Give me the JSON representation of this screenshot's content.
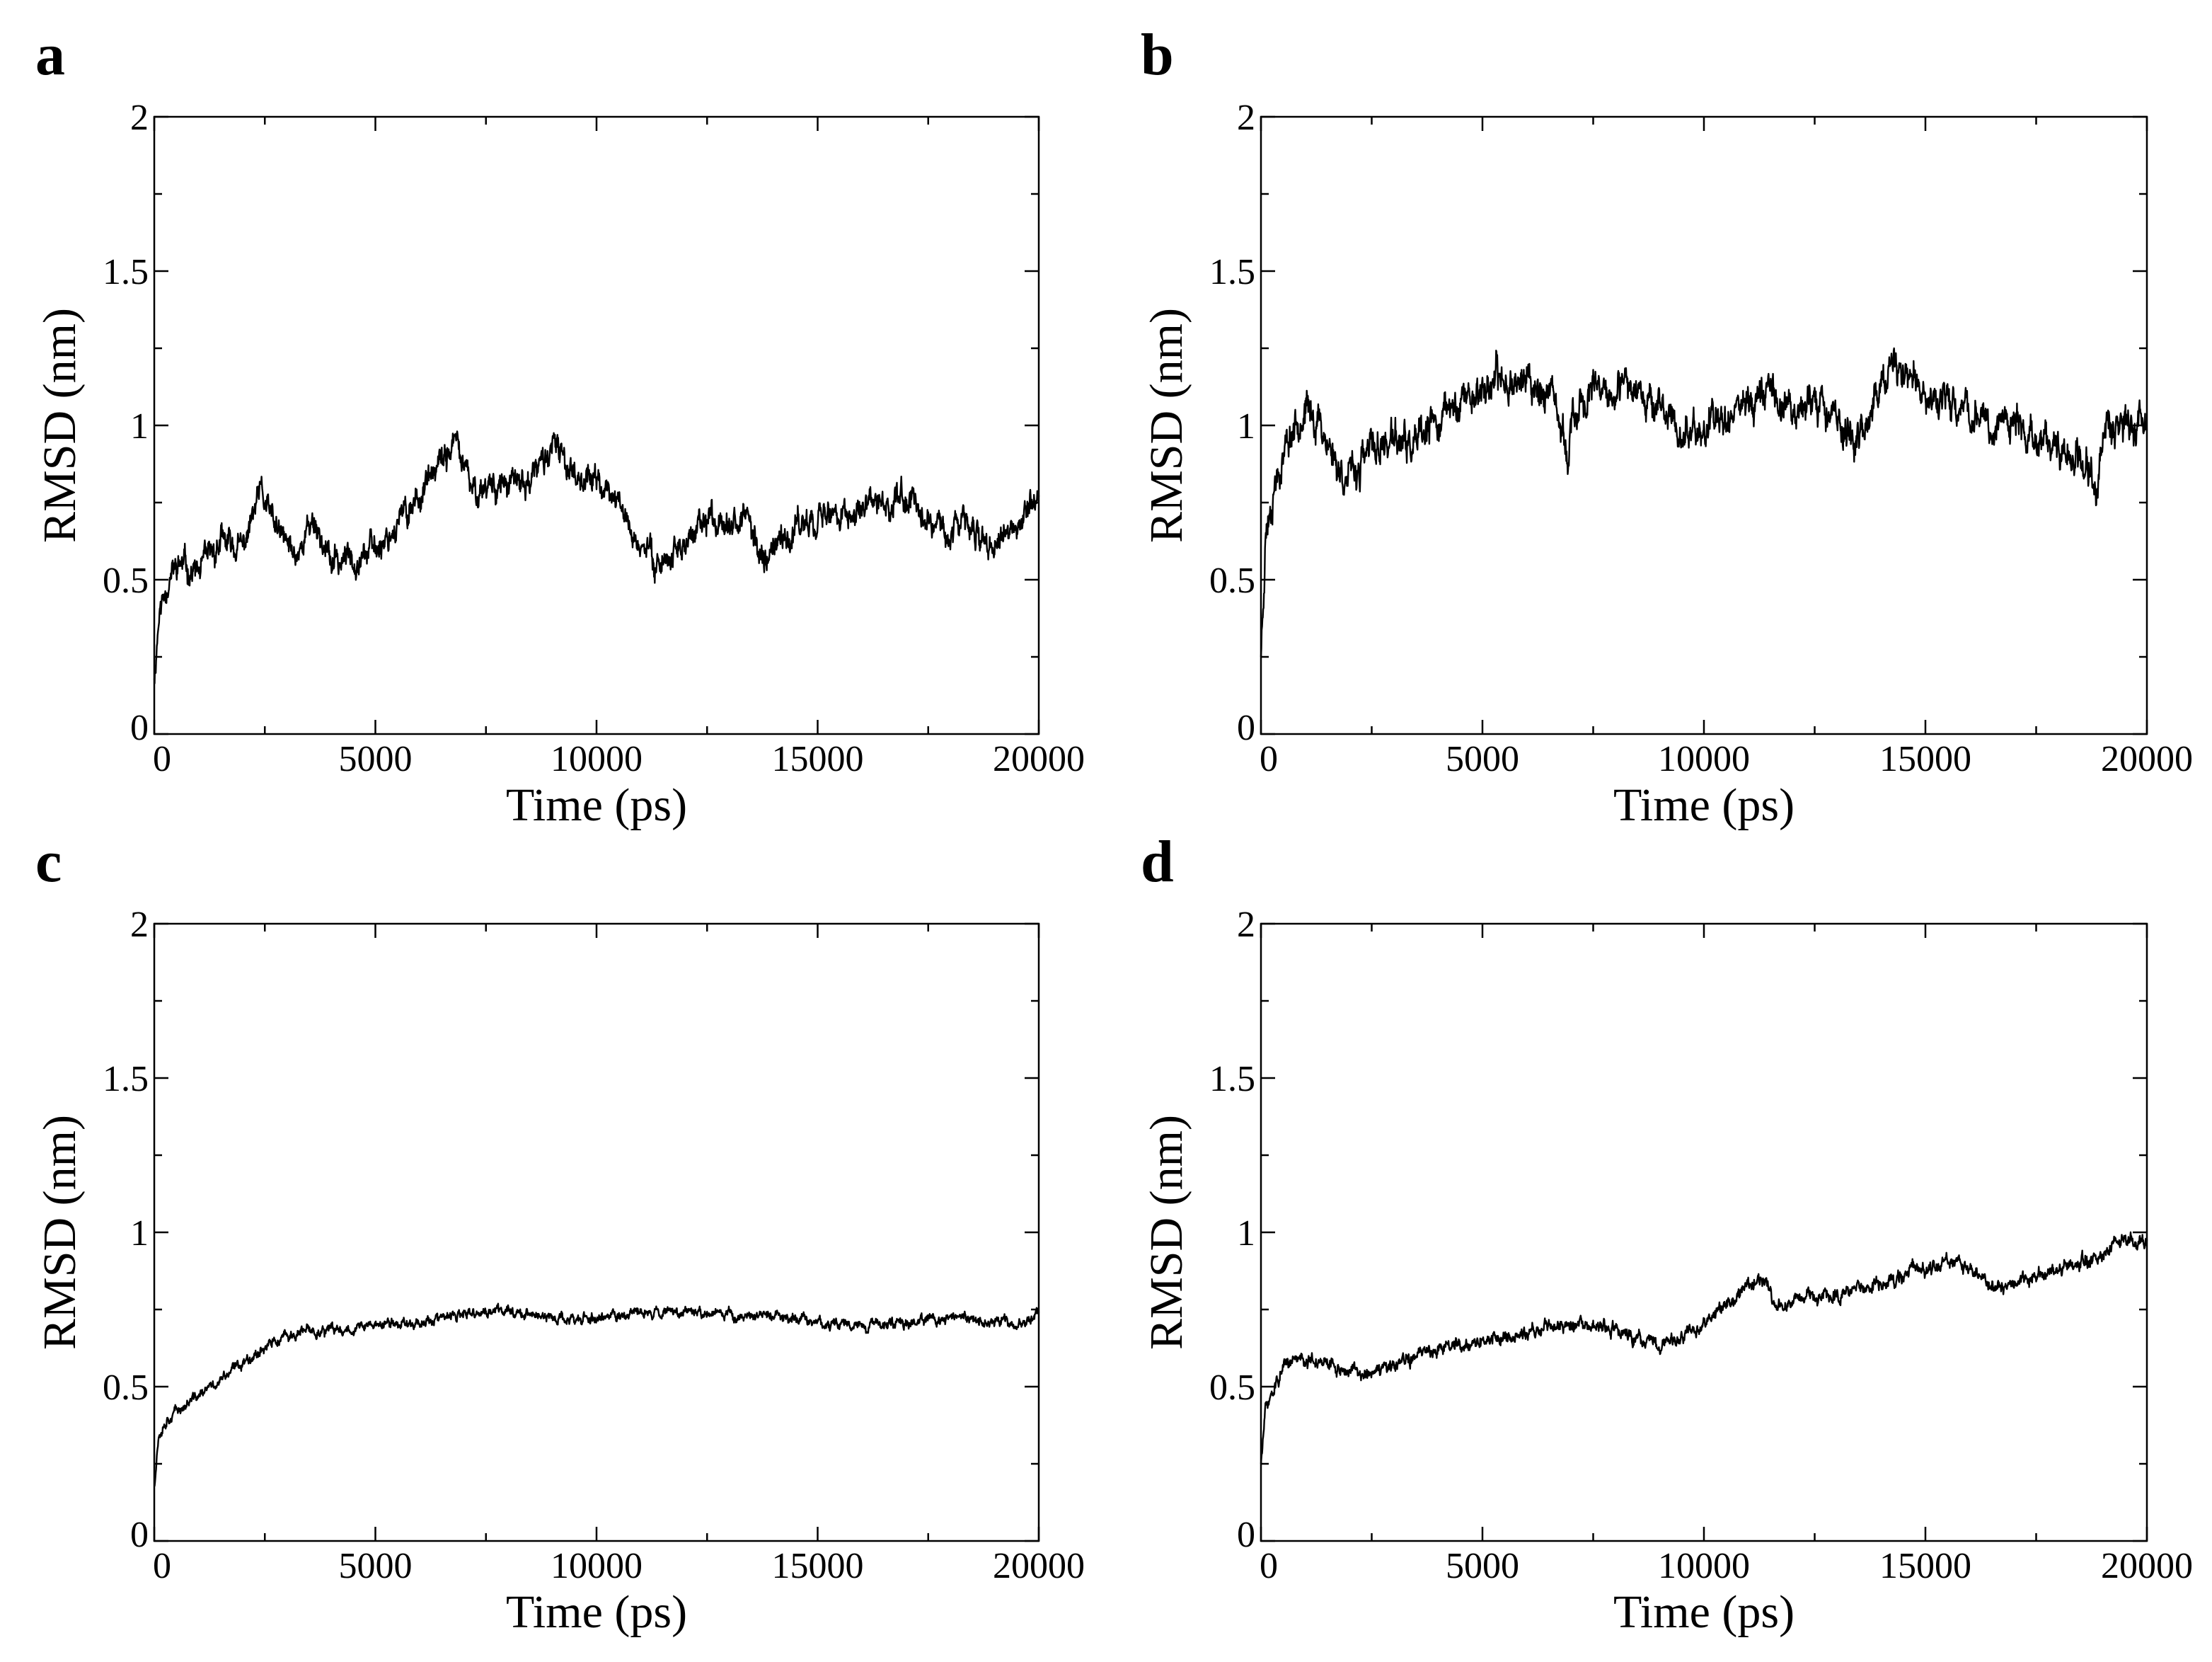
{
  "chart_data": [
    {
      "panel": "a",
      "type": "line",
      "xlabel": "Time (ps)",
      "ylabel": "RMSD (nm)",
      "xlim": [
        0,
        20000
      ],
      "ylim": [
        0,
        2
      ],
      "xticks": [
        0,
        5000,
        10000,
        15000,
        20000
      ],
      "xtick_labels": [
        "0",
        "5000",
        "10000",
        "15000",
        "20000"
      ],
      "yticks": [
        0,
        0.5,
        1,
        1.5,
        2
      ],
      "ytick_labels": [
        "0",
        "0.5",
        "1",
        "1.5",
        "2"
      ],
      "noise": 0.035,
      "seed": 11,
      "series": [
        {
          "name": "RMSD",
          "x": [
            0,
            100,
            300,
            600,
            1000,
            1500,
            2000,
            2400,
            2800,
            3200,
            3600,
            4000,
            4500,
            5000,
            5500,
            6000,
            6400,
            6800,
            7200,
            7600,
            8000,
            8500,
            9000,
            9500,
            10000,
            10500,
            11000,
            11500,
            12000,
            12500,
            13000,
            13400,
            13800,
            14200,
            14600,
            15000,
            15500,
            16000,
            16500,
            17000,
            17500,
            18000,
            18500,
            19000,
            19500,
            20000
          ],
          "y": [
            0.18,
            0.38,
            0.5,
            0.55,
            0.52,
            0.62,
            0.6,
            0.78,
            0.65,
            0.58,
            0.7,
            0.55,
            0.58,
            0.6,
            0.68,
            0.78,
            0.85,
            0.95,
            0.78,
            0.82,
            0.8,
            0.82,
            0.93,
            0.85,
            0.82,
            0.75,
            0.6,
            0.56,
            0.62,
            0.68,
            0.72,
            0.68,
            0.58,
            0.62,
            0.68,
            0.72,
            0.7,
            0.72,
            0.74,
            0.78,
            0.7,
            0.66,
            0.68,
            0.6,
            0.66,
            0.78
          ]
        }
      ]
    },
    {
      "panel": "b",
      "type": "line",
      "xlabel": "Time (ps)",
      "ylabel": "RMSD (nm)",
      "xlim": [
        0,
        20000
      ],
      "ylim": [
        0,
        2
      ],
      "xticks": [
        0,
        5000,
        10000,
        15000,
        20000
      ],
      "xtick_labels": [
        "0",
        "5000",
        "10000",
        "15000",
        "20000"
      ],
      "yticks": [
        0,
        0.5,
        1,
        1.5,
        2
      ],
      "ytick_labels": [
        "0",
        "0.5",
        "1",
        "1.5",
        "2"
      ],
      "noise": 0.045,
      "seed": 23,
      "series": [
        {
          "name": "RMSD",
          "x": [
            0,
            100,
            300,
            600,
            900,
            1300,
            1700,
            2000,
            2500,
            3000,
            3500,
            4000,
            4500,
            5000,
            5500,
            6000,
            6500,
            6900,
            7200,
            7600,
            8000,
            8500,
            9000,
            9500,
            10000,
            10500,
            11000,
            11500,
            12000,
            12500,
            13000,
            13500,
            14000,
            14500,
            15000,
            15500,
            16000,
            16500,
            17000,
            17500,
            18000,
            18500,
            18900,
            19100,
            19500,
            20000
          ],
          "y": [
            0.25,
            0.65,
            0.82,
            0.95,
            1.05,
            1.02,
            0.88,
            0.82,
            0.92,
            0.95,
            0.92,
            1.02,
            1.08,
            1.12,
            1.15,
            1.15,
            1.1,
            0.92,
            1.08,
            1.1,
            1.08,
            1.15,
            1.05,
            0.98,
            0.98,
            1.05,
            1.08,
            1.12,
            1.05,
            1.1,
            1.02,
            0.95,
            1.12,
            1.18,
            1.1,
            1.08,
            1.05,
            1.0,
            1.02,
            0.95,
            0.92,
            0.88,
            0.8,
            1.0,
            1.02,
            1.02
          ]
        }
      ]
    },
    {
      "panel": "c",
      "type": "line",
      "xlabel": "Time (ps)",
      "ylabel": "RMSD (nm)",
      "xlim": [
        0,
        20000
      ],
      "ylim": [
        0,
        2
      ],
      "xticks": [
        0,
        5000,
        10000,
        15000,
        20000
      ],
      "xtick_labels": [
        "0",
        "5000",
        "10000",
        "15000",
        "20000"
      ],
      "yticks": [
        0,
        0.5,
        1,
        1.5,
        2
      ],
      "ytick_labels": [
        "0",
        "0.5",
        "1",
        "1.5",
        "2"
      ],
      "noise": 0.013,
      "seed": 37,
      "series": [
        {
          "name": "RMSD",
          "x": [
            0,
            100,
            300,
            600,
            1000,
            1500,
            2000,
            2500,
            3000,
            3500,
            4000,
            4500,
            5000,
            6000,
            7000,
            8000,
            9000,
            10000,
            11000,
            12000,
            13000,
            14000,
            15000,
            16000,
            17000,
            18000,
            19000,
            19600,
            20000
          ],
          "y": [
            0.18,
            0.35,
            0.4,
            0.43,
            0.47,
            0.52,
            0.58,
            0.63,
            0.66,
            0.68,
            0.68,
            0.69,
            0.7,
            0.71,
            0.73,
            0.75,
            0.72,
            0.72,
            0.74,
            0.75,
            0.73,
            0.73,
            0.71,
            0.7,
            0.71,
            0.72,
            0.71,
            0.7,
            0.74
          ]
        }
      ]
    },
    {
      "panel": "d",
      "type": "line",
      "xlabel": "Time (ps)",
      "ylabel": "RMSD (nm)",
      "xlim": [
        0,
        20000
      ],
      "ylim": [
        0,
        2
      ],
      "xticks": [
        0,
        5000,
        10000,
        15000,
        20000
      ],
      "xtick_labels": [
        "0",
        "5000",
        "10000",
        "15000",
        "20000"
      ],
      "yticks": [
        0,
        0.5,
        1,
        1.5,
        2
      ],
      "ytick_labels": [
        "0",
        "0.5",
        "1",
        "1.5",
        "2"
      ],
      "noise": 0.017,
      "seed": 51,
      "series": [
        {
          "name": "RMSD",
          "x": [
            0,
            100,
            300,
            600,
            900,
            1200,
            1600,
            2000,
            2500,
            3000,
            3500,
            4000,
            5000,
            6000,
            6500,
            7000,
            8000,
            9000,
            9500,
            10000,
            10500,
            11000,
            11300,
            11600,
            12000,
            13000,
            14000,
            15000,
            15500,
            16000,
            16500,
            17000,
            17500,
            18000,
            18500,
            19000,
            19300,
            19600,
            20000
          ],
          "y": [
            0.25,
            0.42,
            0.5,
            0.57,
            0.6,
            0.58,
            0.57,
            0.55,
            0.54,
            0.56,
            0.6,
            0.63,
            0.65,
            0.67,
            0.7,
            0.7,
            0.68,
            0.63,
            0.66,
            0.7,
            0.76,
            0.82,
            0.85,
            0.77,
            0.78,
            0.8,
            0.83,
            0.88,
            0.91,
            0.88,
            0.84,
            0.82,
            0.86,
            0.88,
            0.9,
            0.92,
            0.98,
            0.97,
            0.97
          ]
        }
      ]
    }
  ]
}
